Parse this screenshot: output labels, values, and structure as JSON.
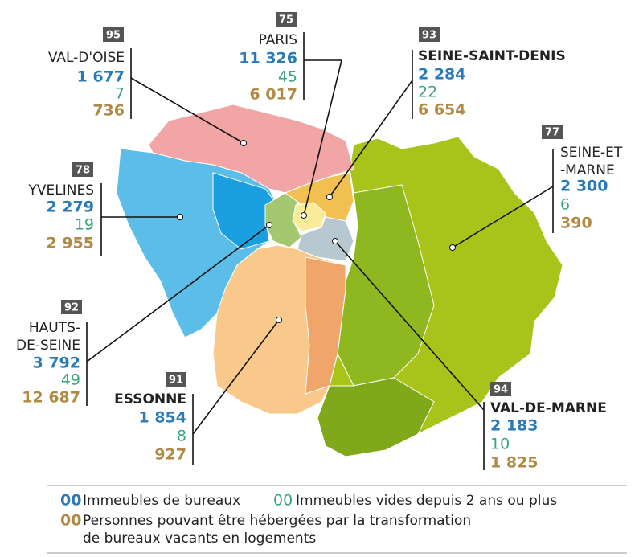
{
  "departments": [
    {
      "code": "95",
      "name": [
        "VAL-D'OISE"
      ],
      "offices": "1 677",
      "vacant": "7",
      "housing": "736"
    },
    {
      "code": "75",
      "name": [
        "PARIS"
      ],
      "offices": "11 326",
      "vacant": "45",
      "housing": "6 017"
    },
    {
      "code": "93",
      "name": [
        "SEINE-SAINT-DENIS"
      ],
      "offices": "2 284",
      "vacant": "22",
      "housing": "6 654"
    },
    {
      "code": "77",
      "name": [
        "SEINE-ET",
        "-MARNE"
      ],
      "offices": "2 300",
      "vacant": "6",
      "housing": "390"
    },
    {
      "code": "78",
      "name": [
        "YVELINES"
      ],
      "offices": "2 279",
      "vacant": "19",
      "housing": "2 955"
    },
    {
      "code": "92",
      "name": [
        "HAUTS-",
        "DE-SEINE"
      ],
      "offices": "3 792",
      "vacant": "49",
      "housing": "12 687"
    },
    {
      "code": "91",
      "name": [
        "ESSONNE"
      ],
      "offices": "1 854",
      "vacant": "8",
      "housing": "927"
    },
    {
      "code": "94",
      "name": [
        "VAL-DE-MARNE"
      ],
      "offices": "2 183",
      "vacant": "10",
      "housing": "1 825"
    }
  ],
  "legend": {
    "items": [
      {
        "marker": "00",
        "text": [
          "Immeubles de bureaux"
        ]
      },
      {
        "marker": "00",
        "text": [
          "Immeubles vides depuis 2 ans ou plus"
        ]
      },
      {
        "marker": "00",
        "text": [
          "Personnes pouvant être hébergées par la transformation",
          "de bureaux vacants en logements"
        ]
      }
    ]
  }
}
